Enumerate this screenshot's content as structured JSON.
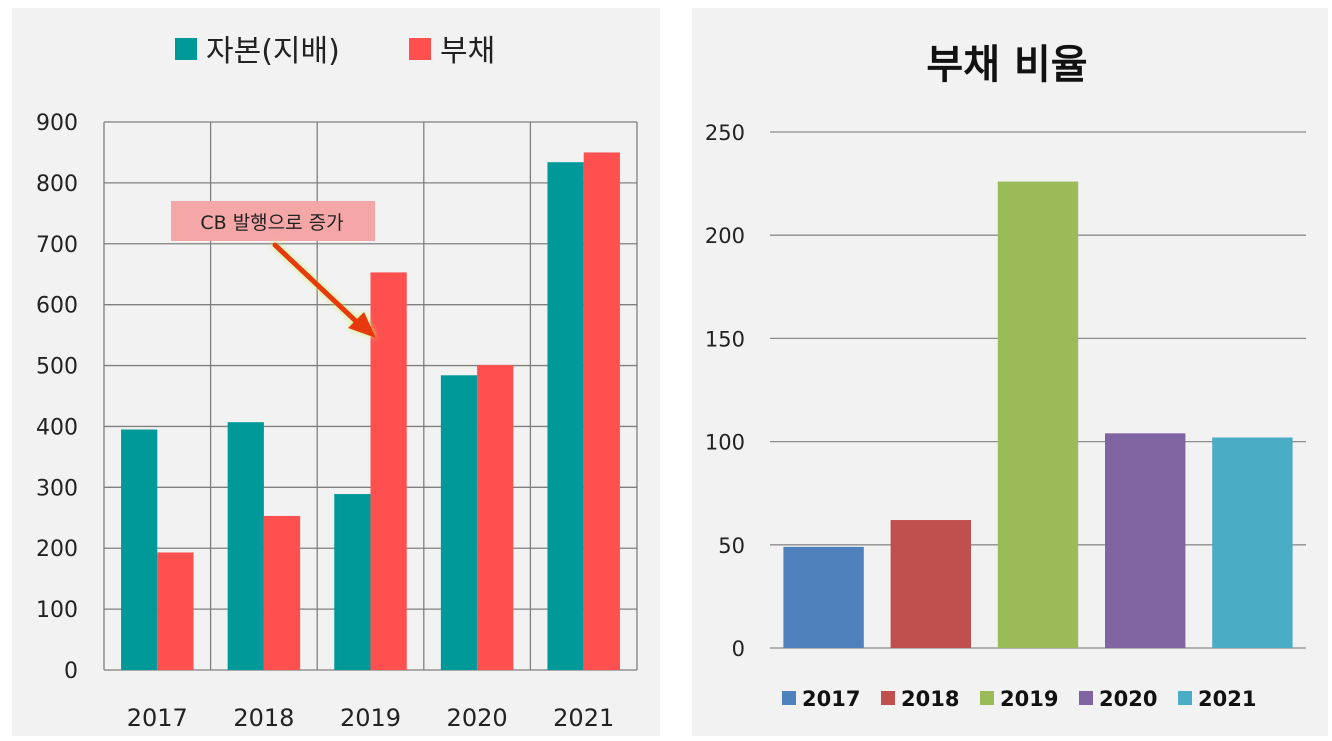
{
  "chart_data": [
    {
      "type": "bar",
      "title": "",
      "legend": [
        "자본(지배)",
        "부채"
      ],
      "legend_position": "top",
      "categories": [
        "2017",
        "2018",
        "2019",
        "2020",
        "2021"
      ],
      "series": [
        {
          "name": "자본(지배)",
          "color": "#009999",
          "values": [
            395,
            407,
            289,
            484,
            834
          ]
        },
        {
          "name": "부채",
          "color": "#FF5050",
          "values": [
            193,
            253,
            653,
            501,
            850
          ]
        }
      ],
      "ylim": [
        0,
        900
      ],
      "yticks": [
        "0",
        "100",
        "200",
        "300",
        "400",
        "500",
        "600",
        "700",
        "800",
        "900"
      ],
      "grid": true,
      "annotation": {
        "text": "CB 발행으로 증가",
        "target_category": "2019",
        "target_series": "부채"
      }
    },
    {
      "type": "bar",
      "title": "부채 비율",
      "categories": [
        "2017",
        "2018",
        "2019",
        "2020",
        "2021"
      ],
      "values": [
        49,
        62,
        226,
        104,
        102
      ],
      "colors": [
        "#4F81BD",
        "#C0504D",
        "#9BBB59",
        "#8064A2",
        "#4BACC6"
      ],
      "ylim": [
        0,
        250
      ],
      "yticks": [
        "0",
        "50",
        "100",
        "150",
        "200",
        "250"
      ],
      "grid": true,
      "legend": [
        "2017",
        "2018",
        "2019",
        "2020",
        "2021"
      ],
      "legend_position": "bottom"
    }
  ]
}
